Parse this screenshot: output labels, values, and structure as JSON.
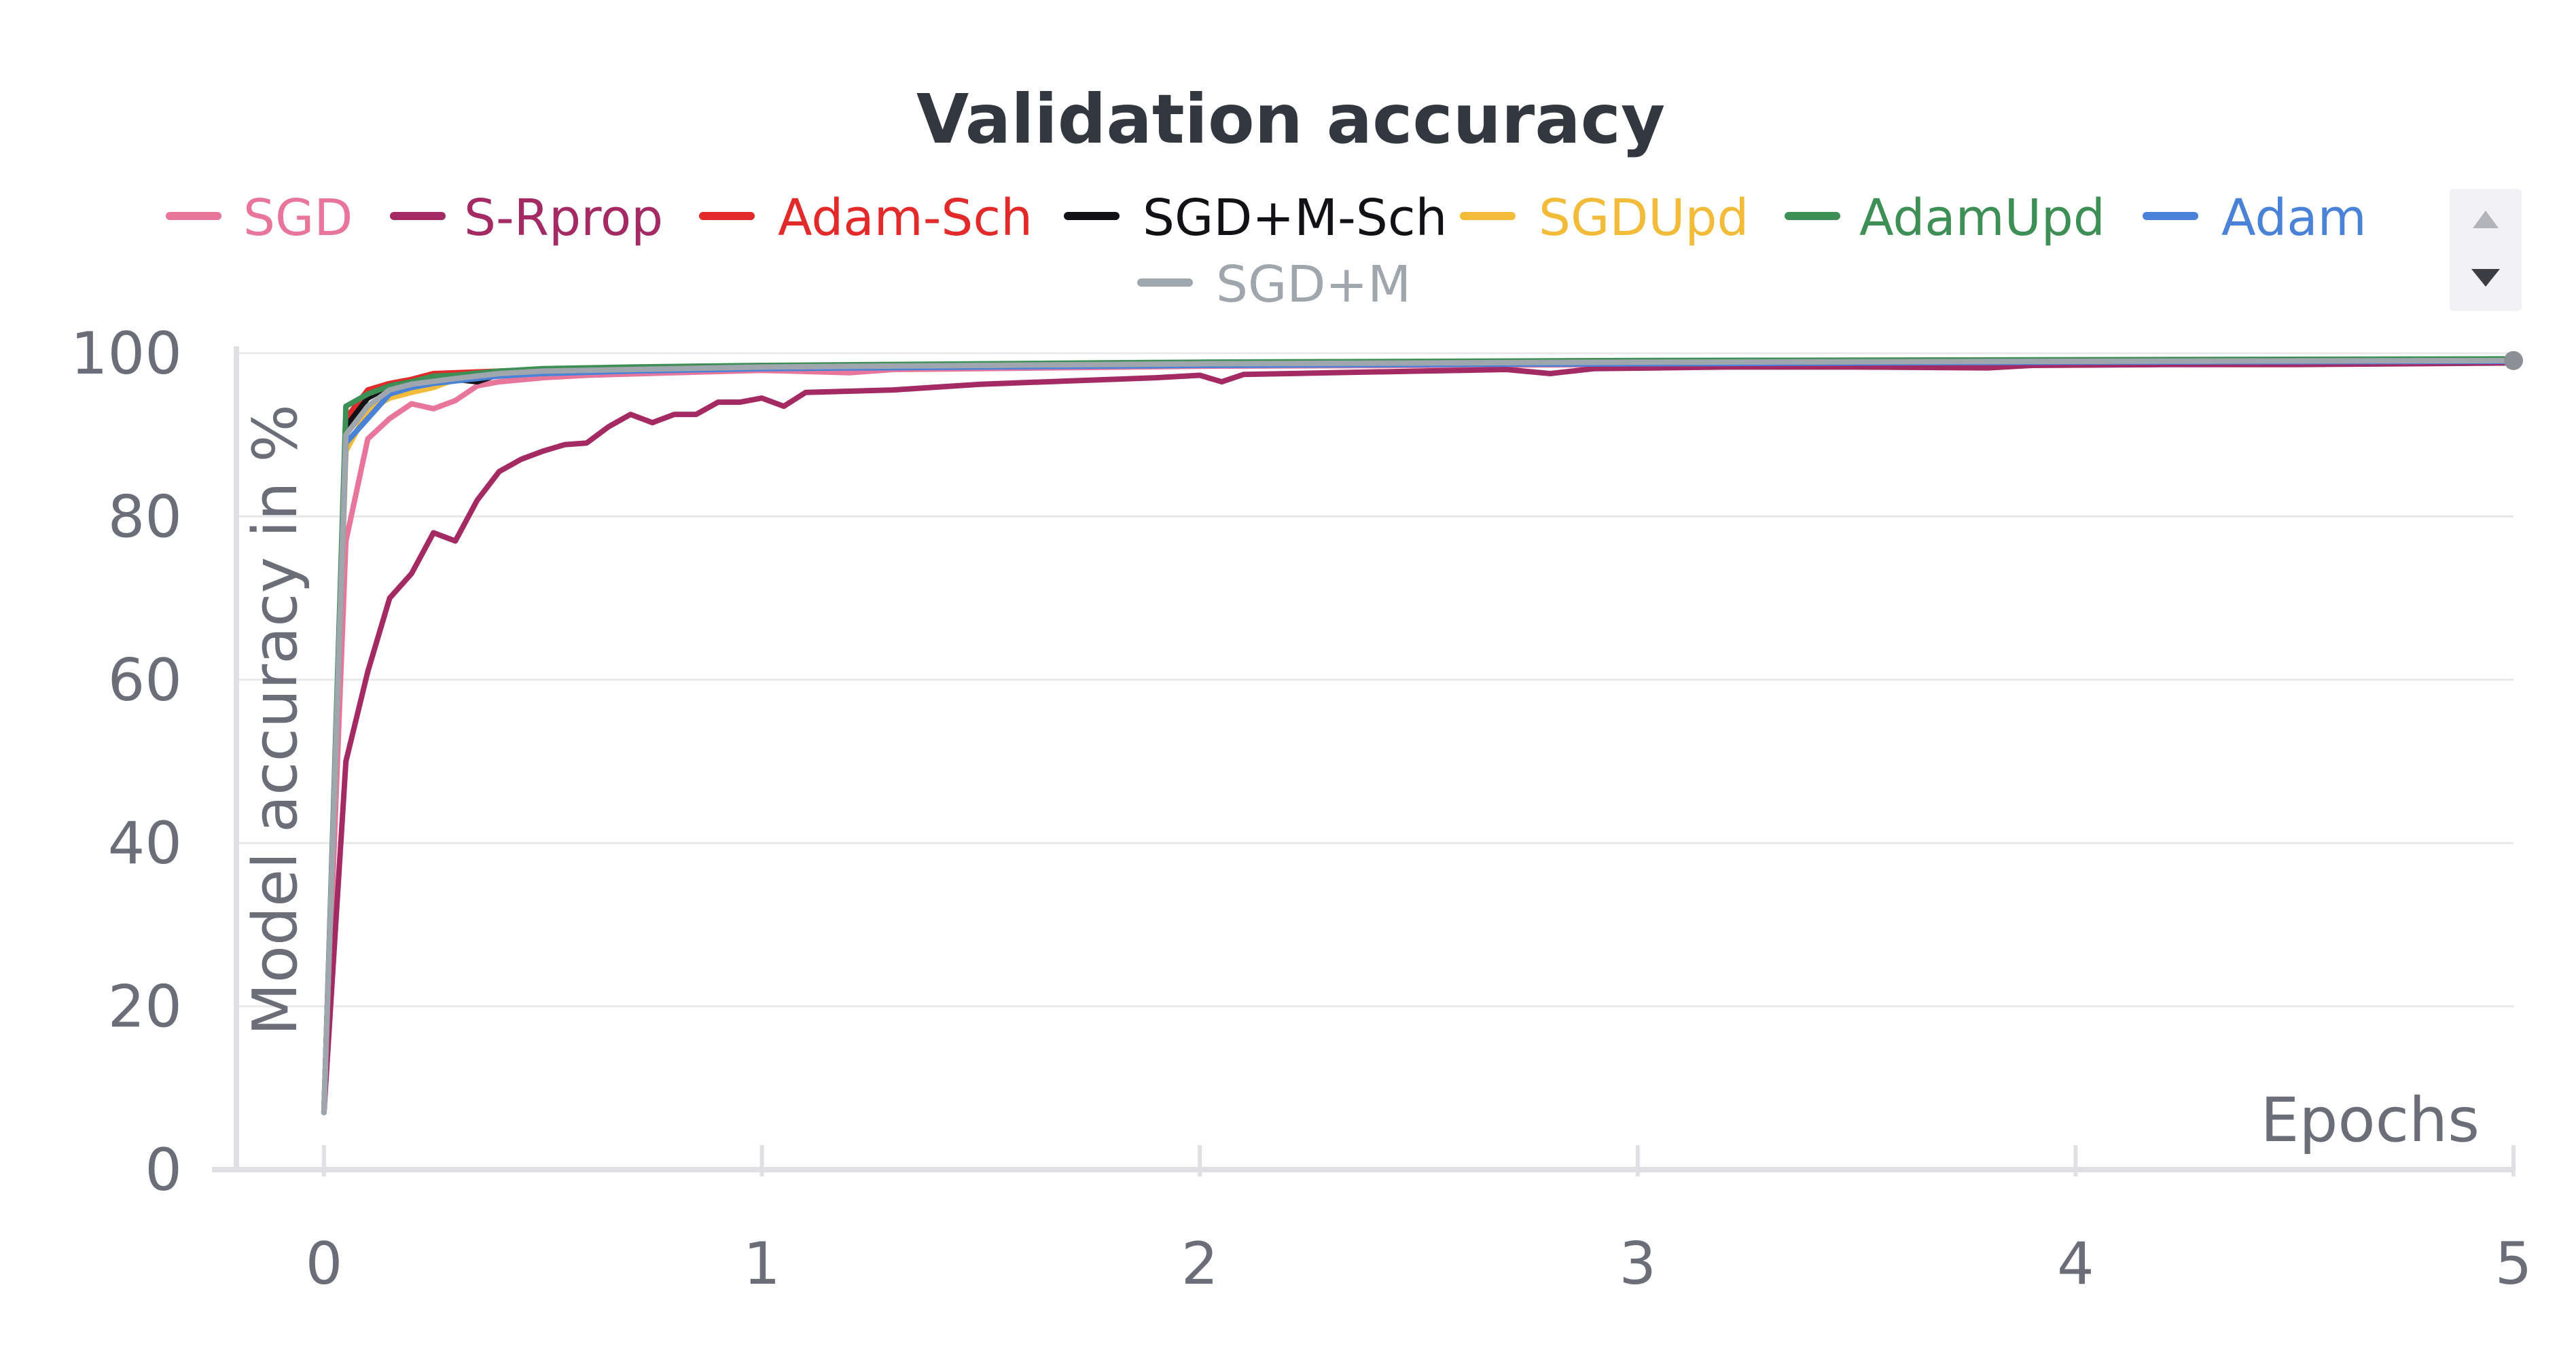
{
  "chart_data": {
    "type": "line",
    "title": "Validation accuracy",
    "xlabel": "Epochs",
    "ylabel": "Model accuracy in %",
    "xlim": [
      -0.2,
      5
    ],
    "ylim": [
      0,
      100
    ],
    "x_ticks": [
      "0",
      "1",
      "2",
      "3",
      "4",
      "5"
    ],
    "y_ticks": [
      "0",
      "20",
      "40",
      "60",
      "80",
      "100"
    ],
    "grid": true,
    "legend_position": "top",
    "series": [
      {
        "name": "SGD",
        "color": "#e8769a",
        "points": [
          [
            0,
            7
          ],
          [
            0.05,
            77
          ],
          [
            0.1,
            89.5
          ],
          [
            0.15,
            92
          ],
          [
            0.2,
            93.8
          ],
          [
            0.25,
            93.2
          ],
          [
            0.3,
            94.2
          ],
          [
            0.35,
            96
          ],
          [
            0.4,
            96.5
          ],
          [
            0.5,
            97
          ],
          [
            0.6,
            97.3
          ],
          [
            0.8,
            97.6
          ],
          [
            1.0,
            97.9
          ],
          [
            1.2,
            97.6
          ],
          [
            1.3,
            98.0
          ],
          [
            1.5,
            98.1
          ],
          [
            2.0,
            98.4
          ],
          [
            2.5,
            98.5
          ],
          [
            3.0,
            98.6
          ],
          [
            3.5,
            98.7
          ],
          [
            4.0,
            98.8
          ],
          [
            4.5,
            98.9
          ],
          [
            5.0,
            99.0
          ]
        ]
      },
      {
        "name": "S-Rprop",
        "color": "#a42a64",
        "points": [
          [
            0,
            7
          ],
          [
            0.05,
            50
          ],
          [
            0.1,
            61
          ],
          [
            0.15,
            70
          ],
          [
            0.2,
            73
          ],
          [
            0.25,
            78
          ],
          [
            0.3,
            77
          ],
          [
            0.35,
            82
          ],
          [
            0.4,
            85.5
          ],
          [
            0.45,
            87
          ],
          [
            0.5,
            88
          ],
          [
            0.55,
            88.8
          ],
          [
            0.6,
            89
          ],
          [
            0.65,
            91
          ],
          [
            0.7,
            92.5
          ],
          [
            0.75,
            91.5
          ],
          [
            0.8,
            92.5
          ],
          [
            0.85,
            92.5
          ],
          [
            0.9,
            94
          ],
          [
            0.95,
            94
          ],
          [
            1.0,
            94.5
          ],
          [
            1.05,
            93.5
          ],
          [
            1.1,
            95.2
          ],
          [
            1.3,
            95.5
          ],
          [
            1.5,
            96.2
          ],
          [
            1.7,
            96.6
          ],
          [
            1.9,
            97
          ],
          [
            2.0,
            97.3
          ],
          [
            2.05,
            96.5
          ],
          [
            2.1,
            97.4
          ],
          [
            2.3,
            97.6
          ],
          [
            2.5,
            97.8
          ],
          [
            2.7,
            98
          ],
          [
            2.8,
            97.5
          ],
          [
            2.9,
            98.1
          ],
          [
            3.2,
            98.3
          ],
          [
            3.5,
            98.3
          ],
          [
            3.8,
            98.2
          ],
          [
            3.9,
            98.5
          ],
          [
            4.2,
            98.6
          ],
          [
            4.5,
            98.6
          ],
          [
            5.0,
            98.8
          ]
        ]
      },
      {
        "name": "Adam-Sch",
        "color": "#e22a2a",
        "points": [
          [
            0,
            7
          ],
          [
            0.05,
            92
          ],
          [
            0.1,
            95.5
          ],
          [
            0.15,
            96.3
          ],
          [
            0.2,
            96.8
          ],
          [
            0.25,
            97.5
          ],
          [
            0.3,
            97.6
          ],
          [
            0.4,
            97.8
          ],
          [
            0.5,
            98
          ],
          [
            0.7,
            98.2
          ],
          [
            1.0,
            98.4
          ],
          [
            1.5,
            98.6
          ],
          [
            2.0,
            98.8
          ],
          [
            3.0,
            99
          ],
          [
            4.0,
            99.1
          ],
          [
            5.0,
            99.2
          ]
        ]
      },
      {
        "name": "SGD+M-Sch",
        "color": "#111116",
        "points": [
          [
            0,
            7
          ],
          [
            0.05,
            91
          ],
          [
            0.1,
            94.5
          ],
          [
            0.15,
            96
          ],
          [
            0.2,
            96.5
          ],
          [
            0.3,
            96.8
          ],
          [
            0.35,
            96.5
          ],
          [
            0.4,
            97.4
          ],
          [
            0.5,
            97.9
          ],
          [
            0.7,
            98.1
          ],
          [
            1.0,
            98.4
          ],
          [
            1.5,
            98.6
          ],
          [
            2.0,
            98.8
          ],
          [
            3.0,
            99
          ],
          [
            4.0,
            99.1
          ],
          [
            5.0,
            99.2
          ]
        ]
      },
      {
        "name": "SGDUpd",
        "color": "#f2bb3a",
        "points": [
          [
            0,
            7
          ],
          [
            0.05,
            88
          ],
          [
            0.1,
            93
          ],
          [
            0.15,
            94.5
          ],
          [
            0.2,
            95.2
          ],
          [
            0.25,
            95.8
          ],
          [
            0.3,
            96.8
          ],
          [
            0.4,
            97.2
          ],
          [
            0.5,
            97.5
          ],
          [
            0.7,
            97.9
          ],
          [
            1.0,
            98.2
          ],
          [
            1.5,
            98.5
          ],
          [
            2.0,
            98.7
          ],
          [
            3.0,
            98.9
          ],
          [
            4.0,
            99
          ],
          [
            5.0,
            99.1
          ]
        ]
      },
      {
        "name": "AdamUpd",
        "color": "#3d8f55",
        "points": [
          [
            0,
            7
          ],
          [
            0.05,
            93.5
          ],
          [
            0.1,
            95
          ],
          [
            0.15,
            96
          ],
          [
            0.2,
            96.5
          ],
          [
            0.25,
            97.2
          ],
          [
            0.3,
            97.3
          ],
          [
            0.4,
            97.8
          ],
          [
            0.5,
            98.1
          ],
          [
            0.7,
            98.3
          ],
          [
            1.0,
            98.5
          ],
          [
            1.5,
            98.7
          ],
          [
            2.0,
            98.9
          ],
          [
            3.0,
            99.1
          ],
          [
            4.0,
            99.2
          ],
          [
            5.0,
            99.3
          ]
        ]
      },
      {
        "name": "Adam",
        "color": "#4a82d8",
        "points": [
          [
            0,
            7
          ],
          [
            0.05,
            89
          ],
          [
            0.1,
            92
          ],
          [
            0.15,
            95
          ],
          [
            0.2,
            95.8
          ],
          [
            0.25,
            96.3
          ],
          [
            0.3,
            96.6
          ],
          [
            0.4,
            97.2
          ],
          [
            0.5,
            97.5
          ],
          [
            0.7,
            97.8
          ],
          [
            1.0,
            98.1
          ],
          [
            1.5,
            98.3
          ],
          [
            2.0,
            98.5
          ],
          [
            3.0,
            98.7
          ],
          [
            4.0,
            98.9
          ],
          [
            5.0,
            99.0
          ]
        ]
      },
      {
        "name": "SGD+M",
        "color": "#a0a6ae",
        "points": [
          [
            0,
            7
          ],
          [
            0.05,
            90
          ],
          [
            0.1,
            93.5
          ],
          [
            0.15,
            95.5
          ],
          [
            0.2,
            96.2
          ],
          [
            0.3,
            96.9
          ],
          [
            0.4,
            97.5
          ],
          [
            0.5,
            97.8
          ],
          [
            0.7,
            98
          ],
          [
            1.0,
            98.3
          ],
          [
            1.5,
            98.5
          ],
          [
            2.0,
            98.7
          ],
          [
            3.0,
            98.9
          ],
          [
            4.0,
            99
          ],
          [
            5.0,
            99.1
          ]
        ]
      }
    ]
  },
  "legend": {
    "scroll_up_icon": "triangle-up-icon",
    "scroll_down_icon": "triangle-down-icon"
  }
}
